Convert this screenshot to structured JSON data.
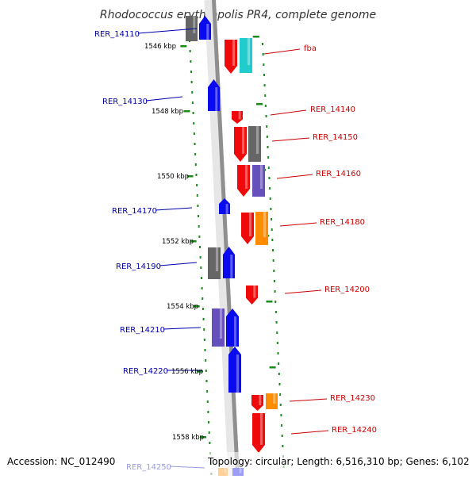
{
  "title": "Rhodococcus erythropolis PR4, complete genome",
  "footer": {
    "accession": "Accession: NC_012490",
    "topology": "Topology: circular; Length: 6,516,310 bp; Genes: 6,102"
  },
  "colors": {
    "backbone": "#8f8f8f",
    "tick": "#1a8a1a",
    "blue": "#0a0aee",
    "red": "#ee0a0a",
    "gray": "#666666",
    "cyan": "#22cccc",
    "purple": "#6650bb",
    "orange": "#ff8c00",
    "left_label": "#0000aa",
    "right_label": "#cc0000"
  },
  "kbp_labels": [
    {
      "text": "1546 kbp",
      "kbp": 1546
    },
    {
      "text": "1548 kbp",
      "kbp": 1548
    },
    {
      "text": "1550 kbp",
      "kbp": 1550
    },
    {
      "text": "1552 kbp",
      "kbp": 1552
    },
    {
      "text": "1554 kbp",
      "kbp": 1554
    },
    {
      "text": "1556 kbp",
      "kbp": 1556
    },
    {
      "text": "1558 kbp",
      "kbp": 1558
    }
  ],
  "genes_left": [
    {
      "label": "RER_14110",
      "color": "blue"
    },
    {
      "label": "RER_14130",
      "color": "blue"
    },
    {
      "label": "RER_14170",
      "color": "blue"
    },
    {
      "label": "RER_14190",
      "color": "blue"
    },
    {
      "label": "RER_14210",
      "color": "blue"
    },
    {
      "label": "RER_14220",
      "color": "blue"
    },
    {
      "label": "RER_14250",
      "color": "blue"
    }
  ],
  "genes_right": [
    {
      "label": "fba",
      "color": "red"
    },
    {
      "label": "RER_14140",
      "color": "red"
    },
    {
      "label": "RER_14150",
      "color": "red"
    },
    {
      "label": "RER_14160",
      "color": "red"
    },
    {
      "label": "RER_14180",
      "color": "red"
    },
    {
      "label": "RER_14200",
      "color": "red"
    },
    {
      "label": "RER_14230",
      "color": "red"
    },
    {
      "label": "RER_14240",
      "color": "red"
    }
  ]
}
